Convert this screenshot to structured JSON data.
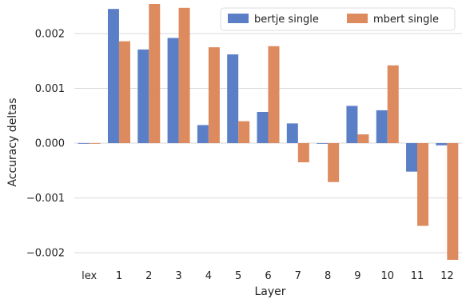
{
  "chart_data": {
    "type": "bar",
    "xlabel": "Layer",
    "ylabel": "Accuracy deltas",
    "categories": [
      "lex",
      "1",
      "2",
      "3",
      "4",
      "5",
      "6",
      "7",
      "8",
      "9",
      "10",
      "11",
      "12"
    ],
    "series": [
      {
        "name": "bertje single",
        "color": "#5b7fc7",
        "values": [
          0.0,
          0.00245,
          0.00171,
          0.00192,
          0.00033,
          0.00162,
          0.00057,
          0.00036,
          -1e-05,
          0.00068,
          0.0006,
          -0.00052,
          -4e-05
        ]
      },
      {
        "name": "mbert single",
        "color": "#dd8a5e",
        "values": [
          0.0,
          0.00186,
          0.00254,
          0.00247,
          0.00175,
          0.0004,
          0.00177,
          -0.00035,
          -0.00071,
          0.00016,
          0.00142,
          -0.00151,
          -0.00213
        ]
      }
    ],
    "yticks": [
      -0.002,
      -0.001,
      0.0,
      0.001,
      0.002
    ],
    "ytick_labels": [
      "−0.002",
      "−0.001",
      "0.000",
      "0.001",
      "0.002"
    ],
    "ylim": [
      -0.00213,
      0.00254
    ],
    "grid": "horizontal",
    "legend_position": "top-right"
  }
}
